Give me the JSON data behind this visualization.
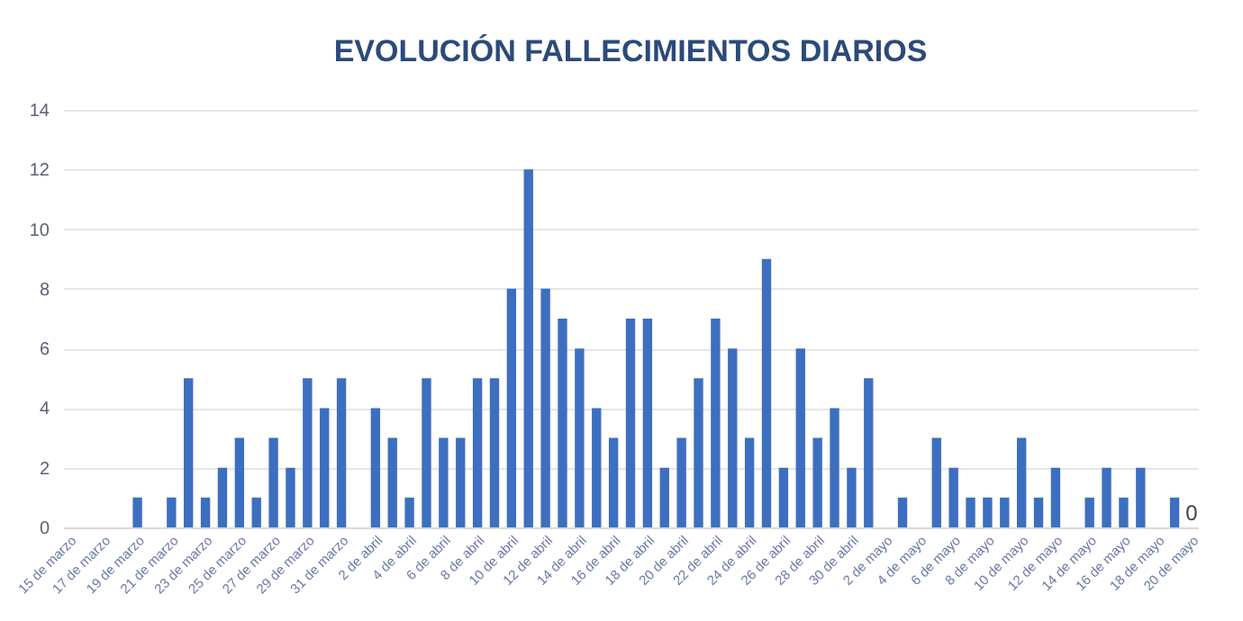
{
  "chart_data": {
    "type": "bar",
    "title": "EVOLUCIÓN FALLECIMIENTOS DIARIOS",
    "categories": [
      "15 de marzo",
      null,
      "17 de marzo",
      null,
      "19 de marzo",
      null,
      "21 de marzo",
      null,
      "23 de marzo",
      null,
      "25 de marzo",
      null,
      "27 de marzo",
      null,
      "29 de marzo",
      null,
      "31 de marzo",
      null,
      "2 de abril",
      null,
      "4 de abril",
      null,
      "6 de abril",
      null,
      "8 de abril",
      null,
      "10 de abril",
      null,
      "12 de abril",
      null,
      "14 de abril",
      null,
      "16 de abril",
      null,
      "18 de abril",
      null,
      "20 de abril",
      null,
      "22 de abril",
      null,
      "24 de abril",
      null,
      "26 de abril",
      null,
      "28 de abril",
      null,
      "30 de abril",
      null,
      "2 de mayo",
      null,
      "4 de mayo",
      null,
      "6 de mayo",
      null,
      "8 de mayo",
      null,
      "10 de mayo",
      null,
      "12 de mayo",
      null,
      "14 de mayo",
      null,
      "16 de mayo",
      null,
      "18 de mayo",
      null,
      "20 de mayo"
    ],
    "values": [
      0,
      0,
      0,
      0,
      1,
      0,
      1,
      5,
      1,
      2,
      3,
      1,
      3,
      2,
      5,
      4,
      5,
      0,
      4,
      3,
      1,
      5,
      3,
      3,
      5,
      5,
      8,
      12,
      8,
      7,
      6,
      4,
      3,
      7,
      7,
      2,
      3,
      5,
      7,
      6,
      3,
      9,
      2,
      6,
      3,
      4,
      2,
      5,
      0,
      1,
      0,
      3,
      2,
      1,
      1,
      1,
      3,
      1,
      2,
      0,
      1,
      2,
      1,
      2,
      0,
      1,
      0
    ],
    "value_labels": [
      null,
      null,
      null,
      null,
      null,
      null,
      null,
      null,
      null,
      null,
      null,
      null,
      null,
      null,
      null,
      null,
      null,
      null,
      null,
      null,
      null,
      null,
      null,
      null,
      null,
      null,
      null,
      null,
      null,
      null,
      null,
      null,
      null,
      null,
      null,
      null,
      null,
      null,
      null,
      null,
      null,
      null,
      null,
      null,
      null,
      null,
      null,
      null,
      null,
      null,
      null,
      null,
      null,
      null,
      null,
      null,
      null,
      null,
      null,
      null,
      null,
      null,
      null,
      null,
      null,
      null,
      "0"
    ],
    "color": "#3d6fc0",
    "ylim": [
      0,
      14
    ],
    "yticks": [
      0,
      2,
      4,
      6,
      8,
      10,
      12,
      14
    ],
    "grid": "y"
  }
}
